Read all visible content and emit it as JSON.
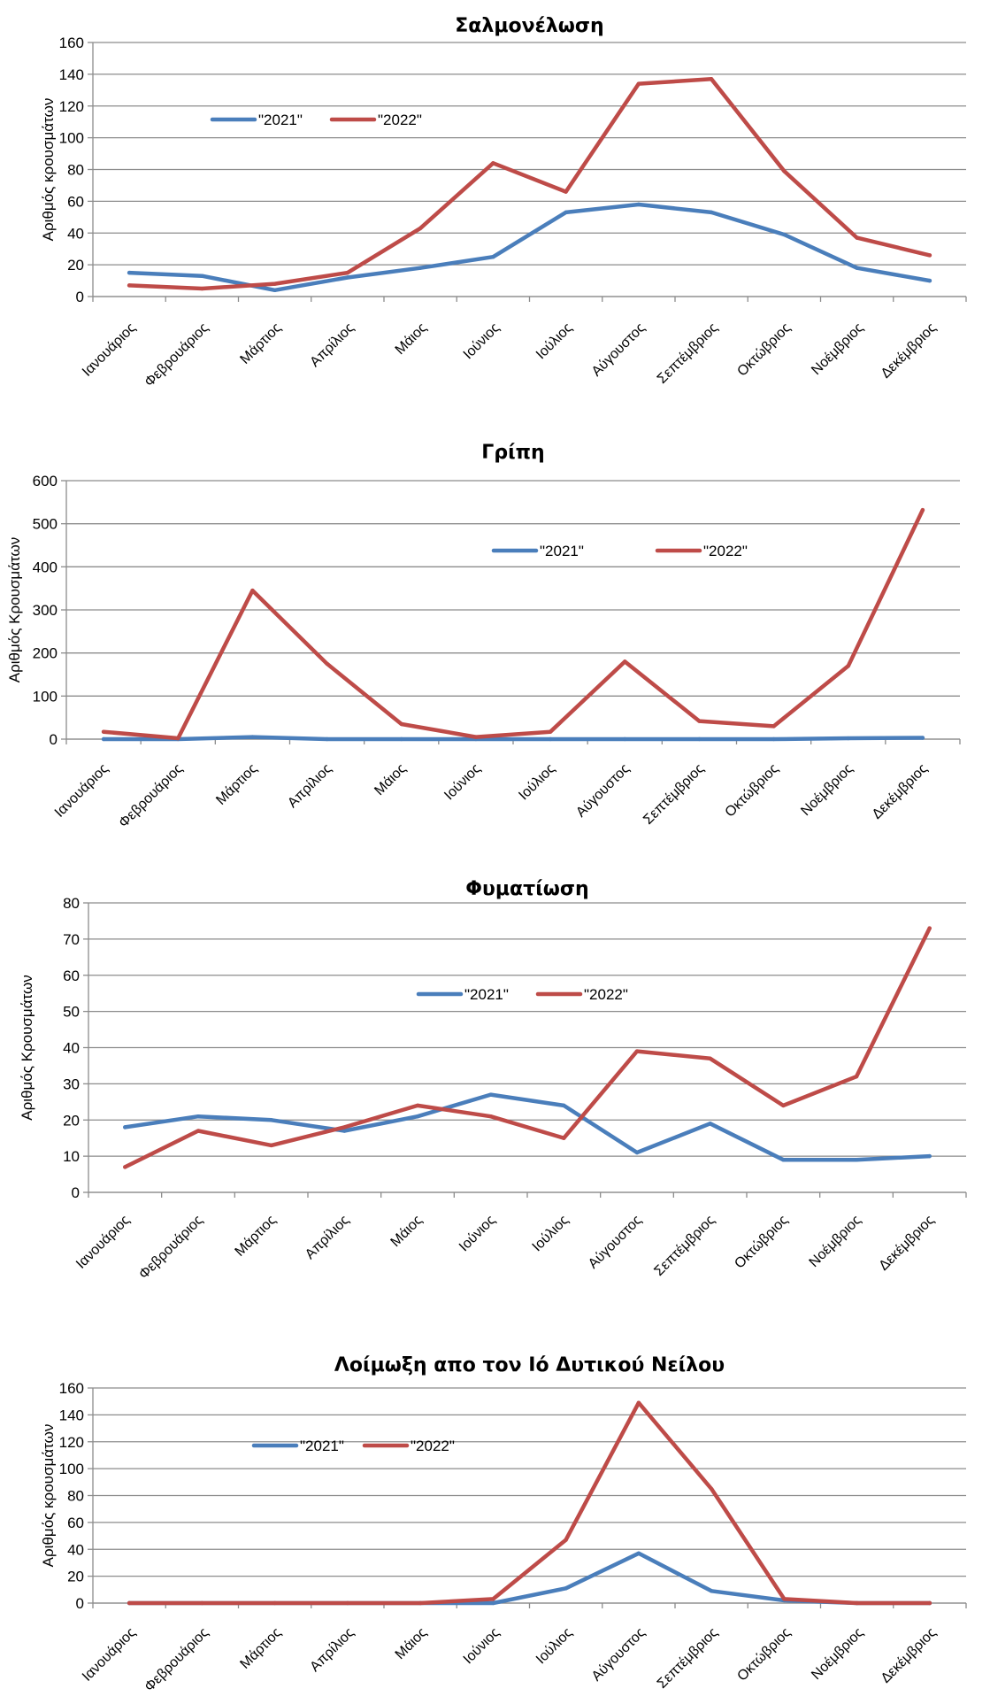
{
  "colors": {
    "s2021": "#4a7ebb",
    "s2022": "#be4b48"
  },
  "chart_data": [
    {
      "type": "line",
      "title": "Σαλμονέλωση",
      "ylabel": "Αριθμός κρουσμάτων",
      "ylim": [
        0,
        160
      ],
      "yticks": [
        0,
        20,
        40,
        60,
        80,
        100,
        120,
        140,
        160
      ],
      "categories": [
        "Ιανουάριος",
        "Φεβρουάριος",
        "Μάρτιος",
        "Απρίλιος",
        "Μάιος",
        "Ιούνιος",
        "Ιούλιος",
        "Αύγουστος",
        "Σεπτέμβριος",
        "Οκτώβριος",
        "Νοέμβριος",
        "Δεκέμβριος"
      ],
      "series": [
        {
          "name": "\"2021\"",
          "color": "#4a7ebb",
          "values": [
            15,
            13,
            4,
            12,
            18,
            25,
            53,
            58,
            53,
            39,
            18,
            10
          ]
        },
        {
          "name": "\"2022\"",
          "color": "#be4b48",
          "values": [
            7,
            5,
            8,
            15,
            43,
            84,
            66,
            134,
            137,
            79,
            37,
            26
          ]
        }
      ],
      "legend": "top-left",
      "grid": true
    },
    {
      "type": "line",
      "title": "Γρίπη",
      "ylabel": "Αριθμός Κρουσμάτων",
      "ylim": [
        0,
        600
      ],
      "yticks": [
        0,
        100,
        200,
        300,
        400,
        500,
        600
      ],
      "categories": [
        "Ιανουάριος",
        "Φεβρουάριος",
        "Μάρτιος",
        "Απρίλιος",
        "Μάιος",
        "Ιούνιος",
        "Ιούλιος",
        "Αύγουστος",
        "Σεπτέμβριος",
        "Οκτώβριος",
        "Νοέμβριος",
        "Δεκέμβριος"
      ],
      "series": [
        {
          "name": "\"2021\"",
          "color": "#4a7ebb",
          "values": [
            0,
            0,
            5,
            0,
            0,
            0,
            0,
            0,
            0,
            0,
            2,
            3
          ]
        },
        {
          "name": "\"2022\"",
          "color": "#be4b48",
          "values": [
            17,
            2,
            345,
            175,
            35,
            5,
            17,
            180,
            42,
            30,
            170,
            532
          ]
        }
      ],
      "legend": "top-center",
      "grid": true
    },
    {
      "type": "line",
      "title": "Φυματίωση",
      "ylabel": "Αριθμός Κρουσμάτων",
      "ylim": [
        0,
        80
      ],
      "yticks": [
        0,
        10,
        20,
        30,
        40,
        50,
        60,
        70,
        80
      ],
      "categories": [
        "Ιανουάριος",
        "Φεβρουάριος",
        "Μάρτιος",
        "Απρίλιος",
        "Μάιος",
        "Ιούνιος",
        "Ιούλιος",
        "Αύγουστος",
        "Σεπτέμβριος",
        "Οκτώβριος",
        "Νοέμβριος",
        "Δεκέμβριος"
      ],
      "series": [
        {
          "name": "\"2021\"",
          "color": "#4a7ebb",
          "values": [
            18,
            21,
            20,
            17,
            21,
            27,
            24,
            11,
            19,
            9,
            9,
            10
          ]
        },
        {
          "name": "\"2022\"",
          "color": "#be4b48",
          "values": [
            7,
            17,
            13,
            18,
            24,
            21,
            15,
            39,
            37,
            24,
            32,
            73
          ]
        }
      ],
      "legend": "top-center",
      "grid": true
    },
    {
      "type": "line",
      "title": "Λοίμωξη απο τον Ιό Δυτικού Νείλου",
      "ylabel": "Αριθμός κρουσμάτων",
      "ylim": [
        0,
        160
      ],
      "yticks": [
        0,
        20,
        40,
        60,
        80,
        100,
        120,
        140,
        160
      ],
      "categories": [
        "Ιανουάριος",
        "Φεβρουάριος",
        "Μάρτιος",
        "Απρίλιος",
        "Μάιος",
        "Ιούνιος",
        "Ιούλιος",
        "Αύγουστος",
        "Σεπτέμβριος",
        "Οκτώβριος",
        "Νοέμβριος",
        "Δεκέμβριος"
      ],
      "series": [
        {
          "name": "\"2021\"",
          "color": "#4a7ebb",
          "values": [
            0,
            0,
            0,
            0,
            0,
            0,
            11,
            37,
            9,
            2,
            0,
            0
          ]
        },
        {
          "name": "\"2022\"",
          "color": "#be4b48",
          "values": [
            0,
            0,
            0,
            0,
            0,
            3,
            47,
            149,
            85,
            3,
            0,
            0
          ]
        }
      ],
      "legend": "top-left",
      "grid": true
    }
  ]
}
